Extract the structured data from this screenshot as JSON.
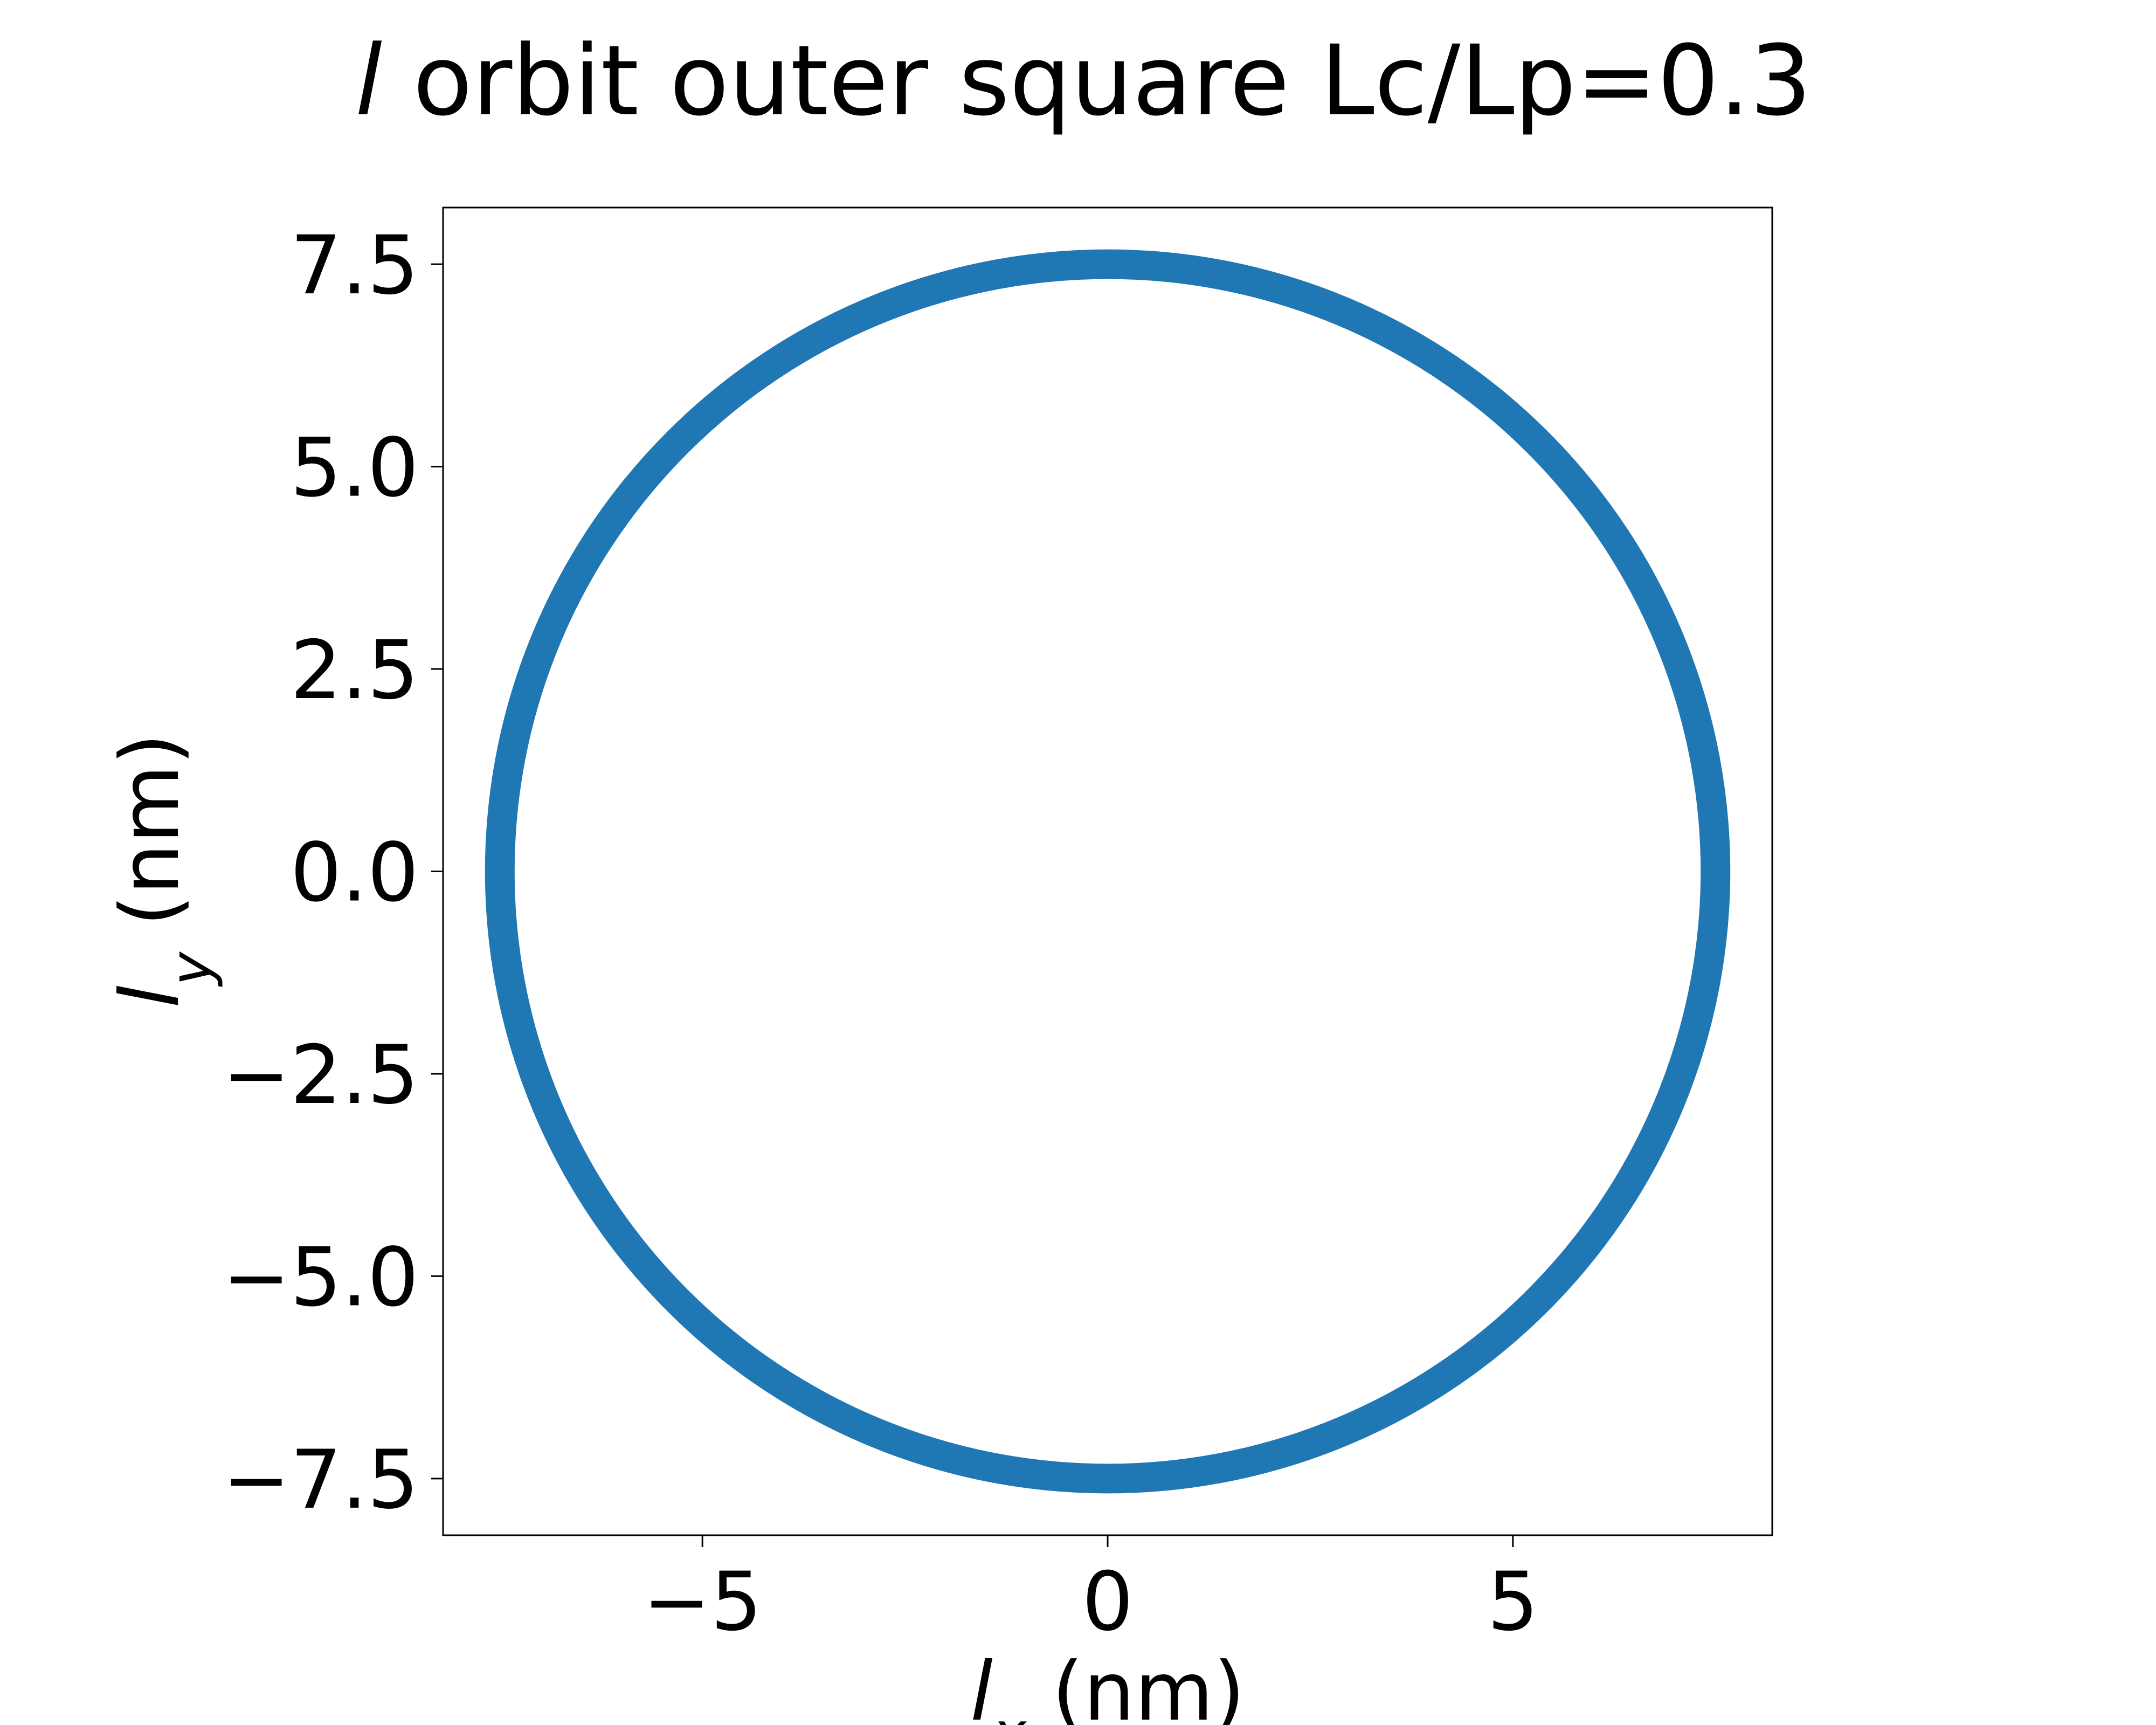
{
  "chart_data": {
    "type": "line",
    "title_parts": {
      "symbol": "l",
      "rest": " orbit outer square Lc/Lp=0.3"
    },
    "xlabel_parts": {
      "symbol": "l",
      "sub": "x",
      "rest": " (nm)"
    },
    "ylabel_parts": {
      "symbol": "l",
      "sub": "y",
      "rest": " (nm)"
    },
    "xlim": [
      -8.2,
      8.2
    ],
    "ylim": [
      -8.2,
      8.2
    ],
    "xticks": [
      -5,
      0,
      5
    ],
    "xtick_labels": [
      "−5",
      "0",
      "5"
    ],
    "yticks": [
      -7.5,
      -5.0,
      -2.5,
      0.0,
      2.5,
      5.0,
      7.5
    ],
    "ytick_labels": [
      "−7.5",
      "−5.0",
      "−2.5",
      "0.0",
      "2.5",
      "5.0",
      "7.5"
    ],
    "grid": false,
    "series": [
      {
        "shape": "circle",
        "center": [
          0,
          0
        ],
        "radius": 7.5,
        "color": "#1f77b4"
      }
    ]
  }
}
